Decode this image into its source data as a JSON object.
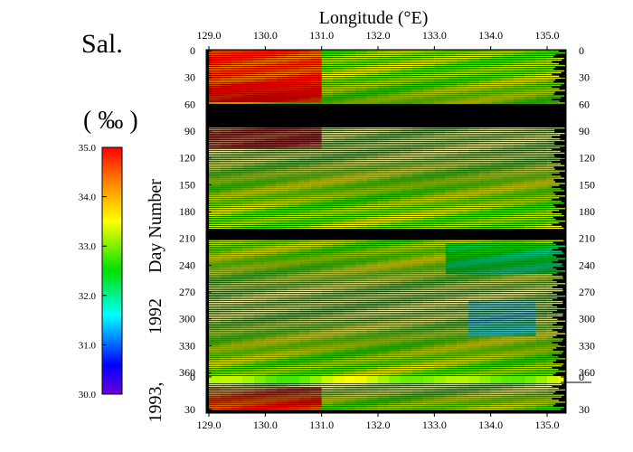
{
  "chart_data": {
    "type": "heatmap",
    "title": "Sal.",
    "unit": "( ‰ )",
    "xlabel": "Longitude (°E)",
    "ylabel_left": "Day Number",
    "year_labels": [
      "1992",
      "1993,"
    ],
    "x_ticks": [
      "129.0",
      "130.0",
      "131.0",
      "132.0",
      "133.0",
      "134.0",
      "135.0"
    ],
    "xlim": [
      129.0,
      135.7
    ],
    "y_ticks_1992": [
      "0",
      "30",
      "60",
      "90",
      "120",
      "150",
      "180",
      "210",
      "240",
      "270",
      "300",
      "330",
      "360"
    ],
    "y_ticks_1993": [
      "0",
      "30"
    ],
    "colorbar": {
      "ticks": [
        "35.0",
        "34.0",
        "33.0",
        "32.0",
        "31.0",
        "30.0"
      ],
      "range": [
        30.0,
        35.0
      ],
      "colors": [
        "#6a00d8",
        "#0000ff",
        "#00ffff",
        "#00e000",
        "#ffff00",
        "#ff8c00",
        "#ff0000"
      ]
    },
    "description_regions": [
      {
        "lon": [
          129.0,
          130.9
        ],
        "day": [
          0,
          35
        ],
        "salinity": 34.6
      },
      {
        "lon": [
          129.0,
          130.9
        ],
        "day": [
          35,
          58
        ],
        "salinity": 34.9
      },
      {
        "lon": [
          129.0,
          130.9
        ],
        "day": [
          85,
          110
        ],
        "salinity": 34.8
      },
      {
        "lon": [
          130.9,
          135.3
        ],
        "day": [
          0,
          365
        ],
        "salinity": 33.1
      },
      {
        "lon": [
          133.4,
          134.6
        ],
        "day": [
          280,
          320
        ],
        "salinity": 31.8
      },
      {
        "lon": [
          129.0,
          130.9
        ],
        "day": [
          370,
          395
        ],
        "salinity": 34.6
      }
    ],
    "no_data_gaps_days": [
      [
        59,
        84
      ],
      [
        200,
        210
      ]
    ]
  }
}
